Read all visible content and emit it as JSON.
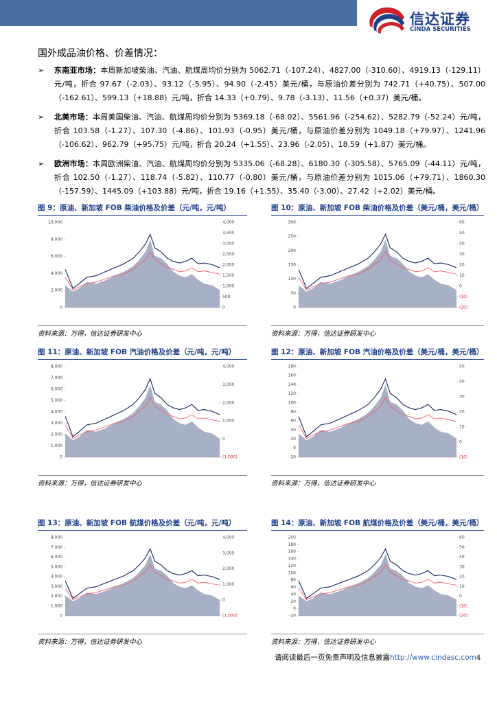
{
  "header": {
    "logo_cn": "信达证券",
    "logo_en": "CINDA SECURITIES"
  },
  "section_title": "国外成品油价格、价差情况：",
  "bullets": [
    {
      "label": "东南亚市场：",
      "text": "本周新加坡柴油、汽油、航煤周均价分别为 5062.71（-107.24）、4827.00（-310.60）、4919.13（-129.11）元/吨，折合 97.67（-2.03）、93.12（-5.95）、94.90（-2.45）美元/桶，与原油价差分别为 742.71（+40.75）、507.00（-162.61）、599.13（+18.88）元/吨，折合 14.33（+0.79）、9.78（-3.13）、11.56（+0.37）美元/桶。"
    },
    {
      "label": "北美市场：",
      "text": "本周美国柴油、汽油、航煤周均价分别为 5369.18（-68.02）、5561.96（-254.62）、5282.79（-52.24）元/吨，折合 103.58（-1.27）、107.30（-4.86）、101.93（-0.95）美元/桶，与原油价差分别为 1049.18（+79.97）、1241.96（-106.62）、962.79（+95.75）元/吨，折合 20.24（+1.55）、23.96（-2.05）、18.59（+1.87）美元/桶。"
    },
    {
      "label": "欧洲市场：",
      "text": "本周欧洲柴油、汽油、航煤周均价分别为 5335.06（-68.28）、6180.30（-305.58）、5765.09（-44.11）元/吨，折合 102.50（-1.27）、118.74（-5.82）、110.77（-0.80）美元/桶，与原油价差分别为 1015.06（+79.71）、1860.30（-157.59）、1445.09（+103.88）元/吨，折合 19.16（+1.55）、35.40（-3.00）、27.42（+2.02）美元/桶。"
    }
  ],
  "figures": [
    {
      "title": "图 9：原油、新加坡 FOB 柴油价格及价差（元/吨，元/吨）",
      "source": "资料来源：万得，信达证券研发中心",
      "left_ticks": [
        0,
        {
          "value": 2000,
          "label": "2,000"
        },
        {
          "value": 4000,
          "label": "4,000"
        },
        {
          "value": 6000,
          "label": "6,000"
        },
        {
          "value": 8000,
          "label": "8,000"
        },
        {
          "value": 10000,
          "label": "10,000"
        }
      ],
      "right_ticks": [
        0,
        500,
        {
          "value": 1000,
          "label": "1,000"
        },
        {
          "value": 1500,
          "label": "1,500"
        },
        {
          "value": 2000,
          "label": "2,000"
        },
        {
          "value": 2500,
          "label": "2,500"
        },
        {
          "value": 3000,
          "label": "3,000"
        },
        {
          "value": 3500,
          "label": "3,500"
        },
        {
          "value": 4000,
          "label": "4,000"
        }
      ]
    },
    {
      "title": "图 10：原油、新加坡 FOB 柴油价格及价差（美元/桶，美元/桶）",
      "source": "资料来源：万得，信达证券研发中心",
      "left_ticks": [
        0,
        50,
        100,
        150,
        200,
        250,
        300
      ],
      "right_ticks": [
        {
          "value": -20,
          "label": "(20)"
        },
        {
          "value": -10,
          "label": "(10)"
        },
        0,
        10,
        20,
        30,
        40,
        50,
        60
      ]
    },
    {
      "title": "图 11：原油、新加坡 FOB 汽油价格及价差（元/吨，元/吨）",
      "source": "资料来源：万得，信达证券研发中心",
      "left_ticks": [
        0,
        {
          "value": 1000,
          "label": "1,000"
        },
        {
          "value": 2000,
          "label": "2,000"
        },
        {
          "value": 3000,
          "label": "3,000"
        },
        {
          "value": 4000,
          "label": "4,000"
        },
        {
          "value": 5000,
          "label": "5,000"
        },
        {
          "value": 6000,
          "label": "6,000"
        },
        {
          "value": 7000,
          "label": "7,000"
        },
        {
          "value": 8000,
          "label": "8,000"
        }
      ],
      "right_ticks": [
        {
          "value": -1000,
          "label": "(1,000)"
        },
        0,
        {
          "value": 1000,
          "label": "1,000"
        },
        {
          "value": 2000,
          "label": "2,000"
        },
        {
          "value": 3000,
          "label": "3,000"
        },
        {
          "value": 4000,
          "label": "4,000"
        }
      ]
    },
    {
      "title": "图 12：原油、新加坡 FOB 汽油价格及价差（美元/桶，美元/桶）",
      "source": "资料来源：万得，信达证券研发中心",
      "left_ticks": [
        -20,
        0,
        20,
        40,
        60,
        80,
        100,
        120,
        140,
        160,
        180
      ],
      "right_ticks": [
        {
          "value": -10,
          "label": "(10)"
        },
        0,
        10,
        20,
        30,
        40,
        50
      ]
    },
    {
      "title": "图 13：原油、新加坡 FOB 航煤价格及价差（元/吨，元/吨）",
      "source": "资料来源：万得，信达证券研发中心",
      "left_ticks": [
        0,
        {
          "value": 1000,
          "label": "1,000"
        },
        {
          "value": 2000,
          "label": "2,000"
        },
        {
          "value": 3000,
          "label": "3,000"
        },
        {
          "value": 4000,
          "label": "4,000"
        },
        {
          "value": 5000,
          "label": "5,000"
        },
        {
          "value": 6000,
          "label": "6,000"
        },
        {
          "value": 7000,
          "label": "7,000"
        },
        {
          "value": 8000,
          "label": "8,000"
        }
      ],
      "right_ticks": [
        {
          "value": -1000,
          "label": "(1,000)"
        },
        0,
        {
          "value": 1000,
          "label": "1,000"
        },
        {
          "value": 2000,
          "label": "2,000"
        },
        {
          "value": 3000,
          "label": "3,000"
        },
        {
          "value": 4000,
          "label": "4,000"
        }
      ]
    },
    {
      "title": "图 14：原油、新加坡 FOB 航煤价格及价差（美元/桶，美元/桶）",
      "source": "资料来源：万得，信达证券研发中心",
      "left_ticks": [
        -20,
        0,
        20,
        40,
        60,
        80,
        100,
        120,
        140,
        160,
        180,
        200
      ],
      "right_ticks": [
        {
          "value": -20,
          "label": "(20)"
        },
        {
          "value": -10,
          "label": "(10)"
        },
        0,
        10,
        20,
        30,
        40,
        50,
        60
      ]
    }
  ],
  "footer": {
    "text": "请阅读最后一页免责声明及信息披露",
    "link": "http://www.cindasc.com",
    "page": "4"
  }
}
